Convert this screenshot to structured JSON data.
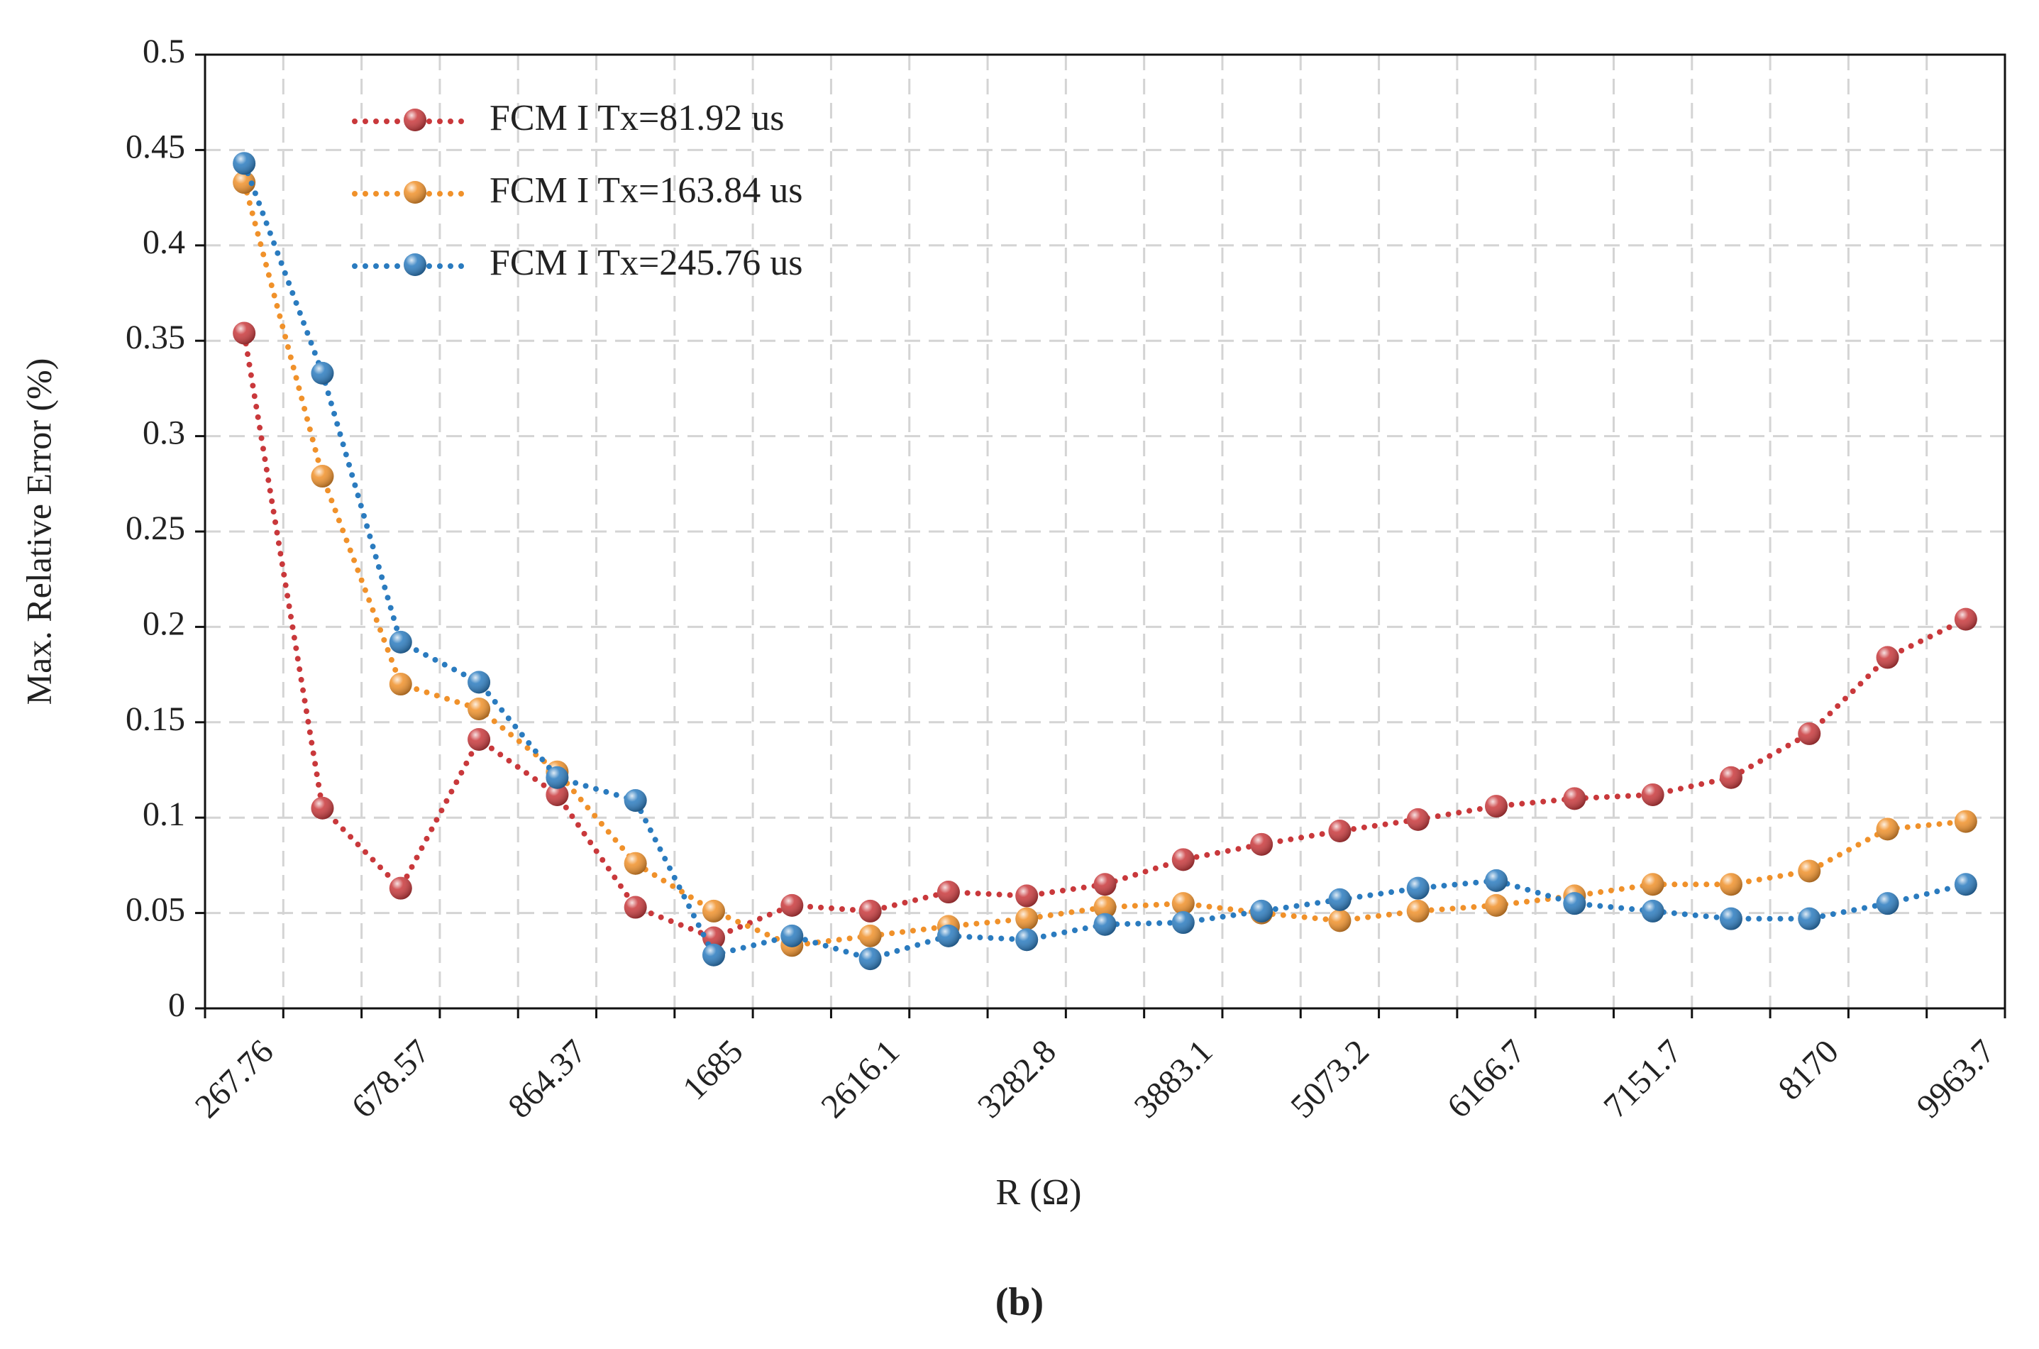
{
  "chart_data": {
    "type": "line",
    "y_label": "Max. Relative Error (%)",
    "x_label": "R (Ω)",
    "caption": "(b)",
    "categories": [
      "267.76",
      null,
      "678.57",
      null,
      "864.37",
      null,
      "1685",
      null,
      "2616.1",
      null,
      "3282.8",
      null,
      "3883.1",
      null,
      "5073.2",
      null,
      "6166.7",
      null,
      "7151.7",
      null,
      "8170",
      null,
      "9963.7"
    ],
    "series": [
      {
        "name": "FCM I Tx=81.92 us",
        "color": "#c9383b",
        "values": [
          0.354,
          0.105,
          0.063,
          0.141,
          0.112,
          0.053,
          0.037,
          0.054,
          0.051,
          0.061,
          0.059,
          0.065,
          0.078,
          0.086,
          0.093,
          0.099,
          0.106,
          0.11,
          0.112,
          0.121,
          0.144,
          0.184,
          0.204
        ]
      },
      {
        "name": "FCM I Tx=163.84 us",
        "color": "#f0912a",
        "values": [
          0.433,
          0.279,
          0.17,
          0.157,
          0.124,
          0.076,
          0.051,
          0.033,
          0.038,
          0.043,
          0.047,
          0.053,
          0.055,
          0.05,
          0.046,
          0.051,
          0.054,
          0.059,
          0.065,
          0.065,
          0.072,
          0.094,
          0.098
        ]
      },
      {
        "name": "FCM I Tx=245.76 us",
        "color": "#2a7bbf",
        "values": [
          0.443,
          0.333,
          0.192,
          0.171,
          0.121,
          0.109,
          0.028,
          0.038,
          0.026,
          0.038,
          0.036,
          0.044,
          0.045,
          0.051,
          0.057,
          0.063,
          0.067,
          0.055,
          0.051,
          0.047,
          0.047,
          0.055,
          0.065
        ]
      }
    ],
    "ylim": [
      0,
      0.5
    ],
    "yticks": [
      0,
      0.05,
      0.1,
      0.15,
      0.2,
      0.25,
      0.3,
      0.35,
      0.4,
      0.45,
      0.5
    ],
    "grid": true,
    "legend": "upper left"
  }
}
